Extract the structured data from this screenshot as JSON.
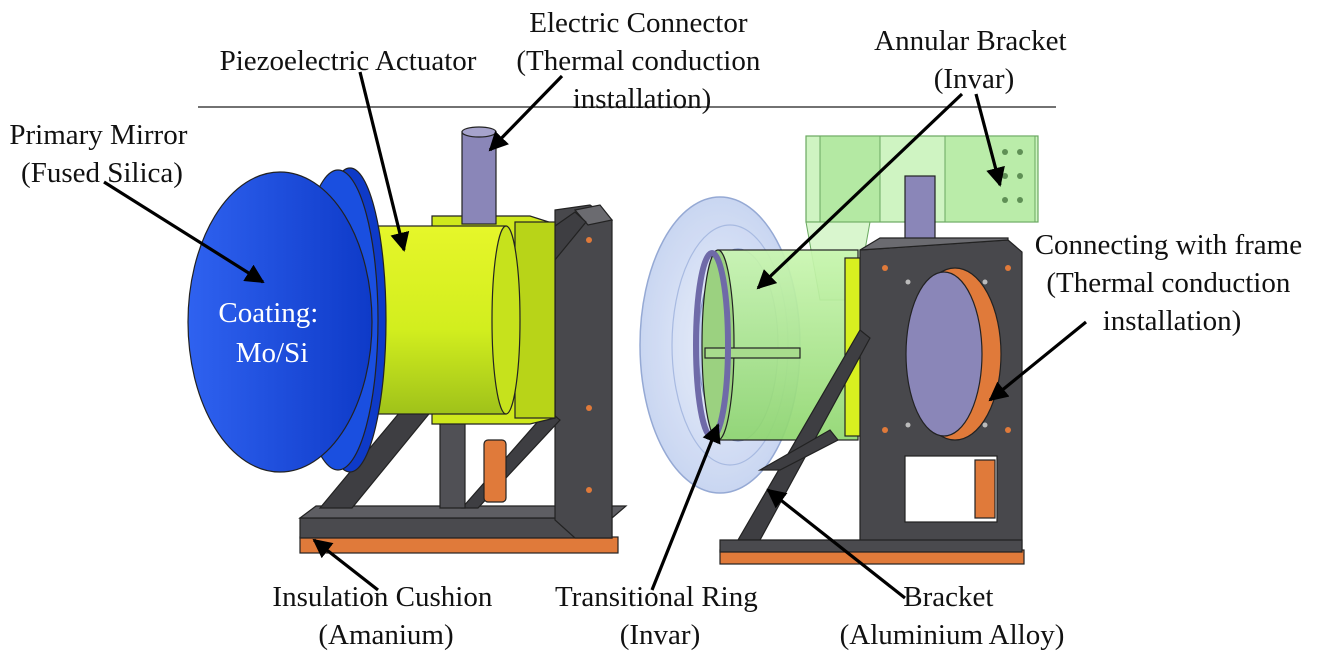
{
  "labels": {
    "electric_connector": [
      "Electric Connector",
      "(Thermal conduction",
      "installation)"
    ],
    "piezo_actuator": [
      "Piezoelectric Actuator"
    ],
    "annular_bracket": [
      "Annular Bracket",
      "(Invar)"
    ],
    "primary_mirror": [
      "Primary Mirror",
      "(Fused Silica)"
    ],
    "coating": [
      "Coating:",
      "Mo/Si"
    ],
    "connecting_frame": [
      "Connecting with frame",
      "(Thermal conduction",
      "installation)"
    ],
    "insulation_cushion": [
      "Insulation Cushion",
      "(Amanium)"
    ],
    "transitional_ring": [
      "Transitional Ring",
      "(Invar)"
    ],
    "bracket": [
      "Bracket",
      "(Aluminium Alloy)"
    ]
  },
  "colors": {
    "mirror_blue": "#1a4fe0",
    "actuator_yellow": "#d8f020",
    "bracket_gray": "#4a4a4e",
    "copper": "#e07a3a",
    "connector_purple": "#8a86b8",
    "invar_green": "#b9f0a0",
    "ring_blue": "#c8d6f2"
  },
  "icons": [
    "mirror-shape",
    "actuator-cylinder",
    "bracket-frame",
    "arrow-pointer"
  ]
}
